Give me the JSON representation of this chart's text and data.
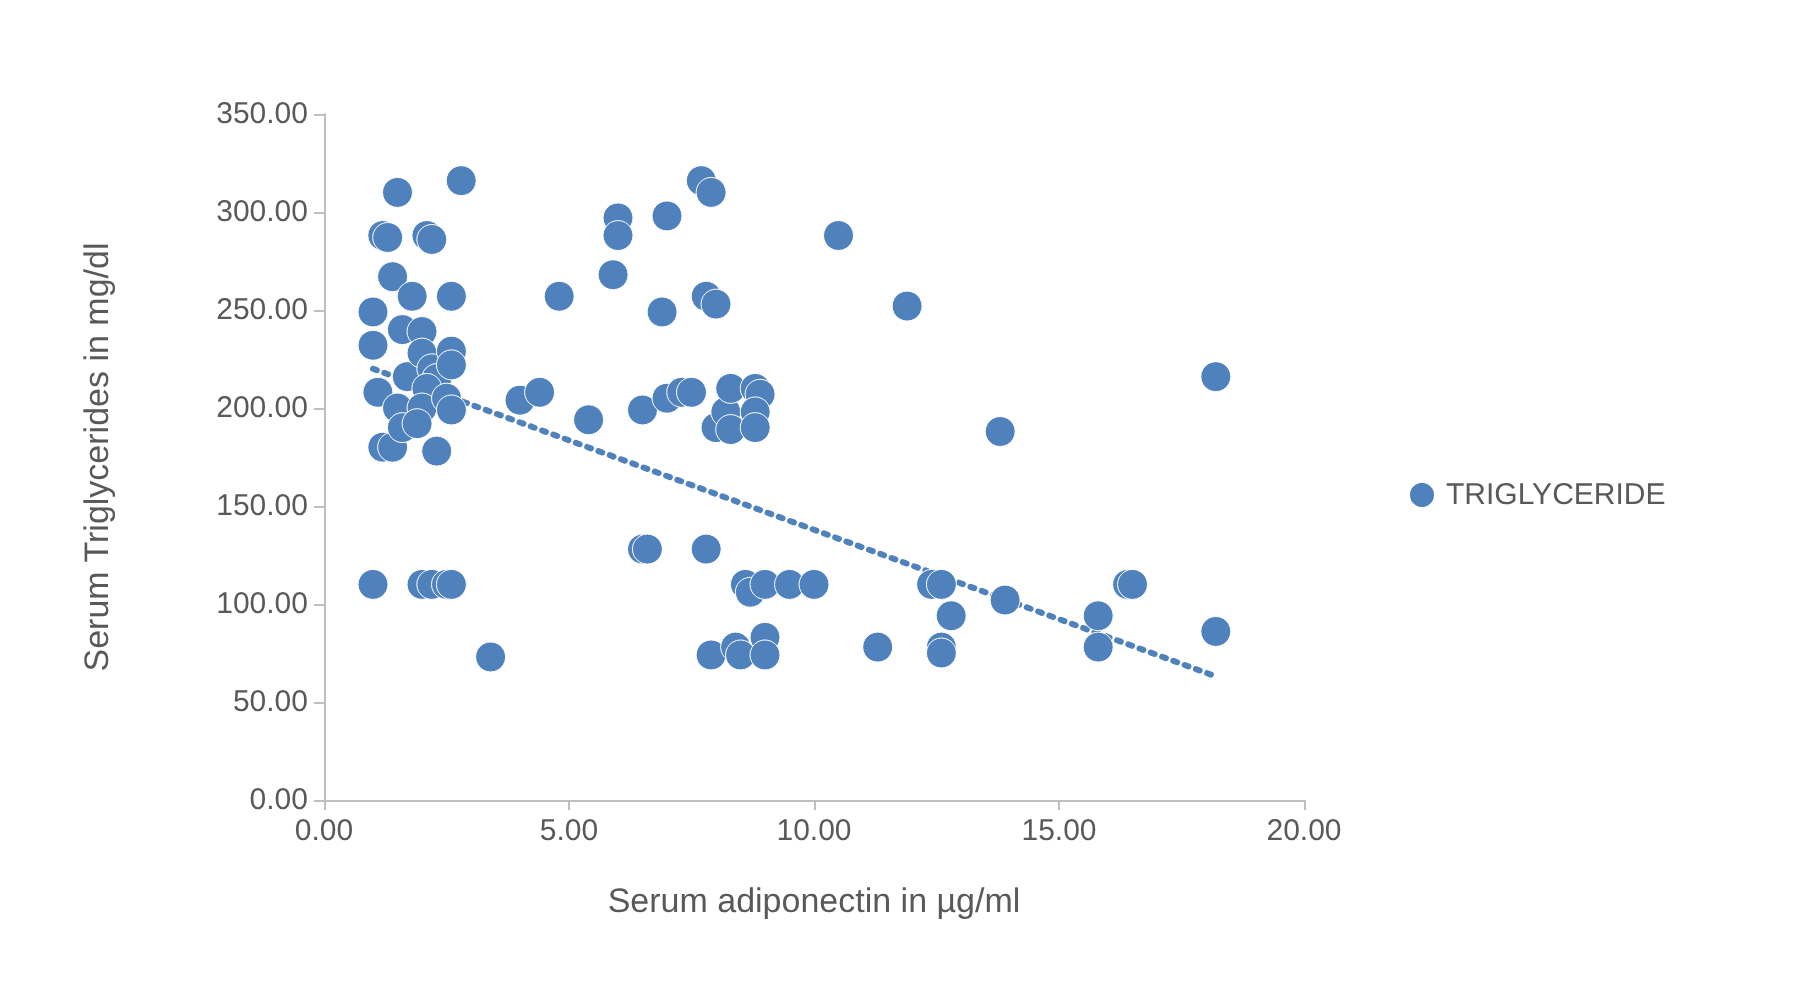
{
  "chart_data": {
    "type": "scatter",
    "xlabel": "Serum adiponectin in µg/ml",
    "ylabel": "Serum Triglycerides in mg/dl",
    "xlim": [
      0,
      20
    ],
    "ylim": [
      0,
      350
    ],
    "xticks": [
      {
        "value": 0,
        "label": "0.00"
      },
      {
        "value": 5,
        "label": "5.00"
      },
      {
        "value": 10,
        "label": "10.00"
      },
      {
        "value": 15,
        "label": "15.00"
      },
      {
        "value": 20,
        "label": "20.00"
      }
    ],
    "yticks": [
      {
        "value": 0,
        "label": "0.00"
      },
      {
        "value": 50,
        "label": "50.00"
      },
      {
        "value": 100,
        "label": "100.00"
      },
      {
        "value": 150,
        "label": "150.00"
      },
      {
        "value": 200,
        "label": "200.00"
      },
      {
        "value": 250,
        "label": "250.00"
      },
      {
        "value": 300,
        "label": "300.00"
      },
      {
        "value": 350,
        "label": "350.00"
      }
    ],
    "grid": false,
    "legend": "right",
    "marker": "circle",
    "series": [
      {
        "name": "TRIGLYCERIDE",
        "color": "#4f81bd",
        "x": [
          1.0,
          1.0,
          1.1,
          1.0,
          1.2,
          1.3,
          1.2,
          1.4,
          1.5,
          1.4,
          1.6,
          1.7,
          1.8,
          1.5,
          1.6,
          2.0,
          2.1,
          2.2,
          2.0,
          2.2,
          2.3,
          2.1,
          2.0,
          1.9,
          2.3,
          2.5,
          2.6,
          2.6,
          2.6,
          2.6,
          2.8,
          2.0,
          2.2,
          2.5,
          2.6,
          3.4,
          4.0,
          4.4,
          4.8,
          5.4,
          6.0,
          6.0,
          5.9,
          6.5,
          6.5,
          6.6,
          6.9,
          7.0,
          7.0,
          7.3,
          7.5,
          7.7,
          7.9,
          7.8,
          8.0,
          7.8,
          7.9,
          8.0,
          8.2,
          8.3,
          8.3,
          8.4,
          8.5,
          8.6,
          8.7,
          8.8,
          8.9,
          8.8,
          8.8,
          9.0,
          9.0,
          9.0,
          9.5,
          10.0,
          10.5,
          11.3,
          11.9,
          12.4,
          12.6,
          12.6,
          12.6,
          12.8,
          13.8,
          13.9,
          15.8,
          15.8,
          16.4,
          16.5,
          18.2,
          18.2
        ],
        "values": [
          249,
          232,
          208,
          110,
          288,
          287,
          180,
          180,
          310,
          267,
          240,
          216,
          257,
          200,
          190,
          239,
          288,
          286,
          228,
          220,
          215,
          210,
          200,
          192,
          178,
          205,
          257,
          229,
          222,
          199,
          316,
          110,
          110,
          110,
          110,
          73,
          204,
          208,
          257,
          194,
          297,
          288,
          268,
          199,
          128,
          128,
          249,
          298,
          205,
          208,
          208,
          316,
          310,
          257,
          253,
          128,
          74,
          190,
          198,
          210,
          189,
          78,
          74,
          110,
          106,
          210,
          207,
          198,
          190,
          110,
          83,
          74,
          110,
          110,
          288,
          78,
          252,
          110,
          110,
          78,
          75,
          94,
          188,
          102,
          94,
          78,
          110,
          110,
          216,
          86
        ]
      },
      {
        "color": "#4f81bd",
        "type": "line",
        "line_style": "dotted",
        "marker": "none",
        "x": [
          1.0,
          18.1
        ],
        "values": [
          220,
          64
        ]
      }
    ]
  }
}
